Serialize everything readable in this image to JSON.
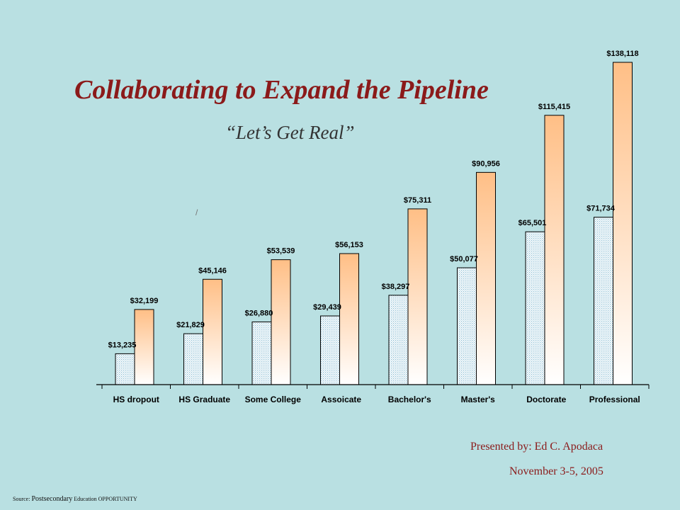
{
  "slide": {
    "title": "Collaborating to Expand the Pipeline",
    "subtitle": "“Let’s Get Real”",
    "slash_mark": "/",
    "presenter": "Presented by: Ed C. Apodaca",
    "date": "November 3-5, 2005",
    "source_prefix": "Source:",
    "source_word": "Postsecondary",
    "source_rest": "Education OPPORTUNITY"
  },
  "colors": {
    "background": "#b9e0e2",
    "title": "#8b1a1a",
    "bar_orange": "#ffc28a",
    "bar_pattern_blue": "#a9cfe0"
  },
  "chart_data": {
    "type": "bar",
    "categories": [
      "HS dropout",
      "HS Graduate",
      "Some College",
      "Assoicate",
      "Bachelor's",
      "Master's",
      "Doctorate",
      "Professional"
    ],
    "series": [
      {
        "values": [
          13235,
          21829,
          26880,
          29439,
          38297,
          50077,
          65501,
          71734
        ],
        "labels": [
          "$13,235",
          "$21,829",
          "$26,880",
          "$29,439",
          "$38,297",
          "$50,077",
          "$65,501",
          "$71,734"
        ]
      },
      {
        "values": [
          32199,
          45146,
          53539,
          56153,
          75311,
          90956,
          115415,
          138118
        ],
        "labels": [
          "$32,199",
          "$45,146",
          "$53,539",
          "$56,153",
          "$75,311",
          "$90,956",
          "$115,415",
          "$138,118"
        ]
      }
    ],
    "ylim": [
      0,
      138118
    ],
    "grid": false,
    "legend": "none"
  }
}
